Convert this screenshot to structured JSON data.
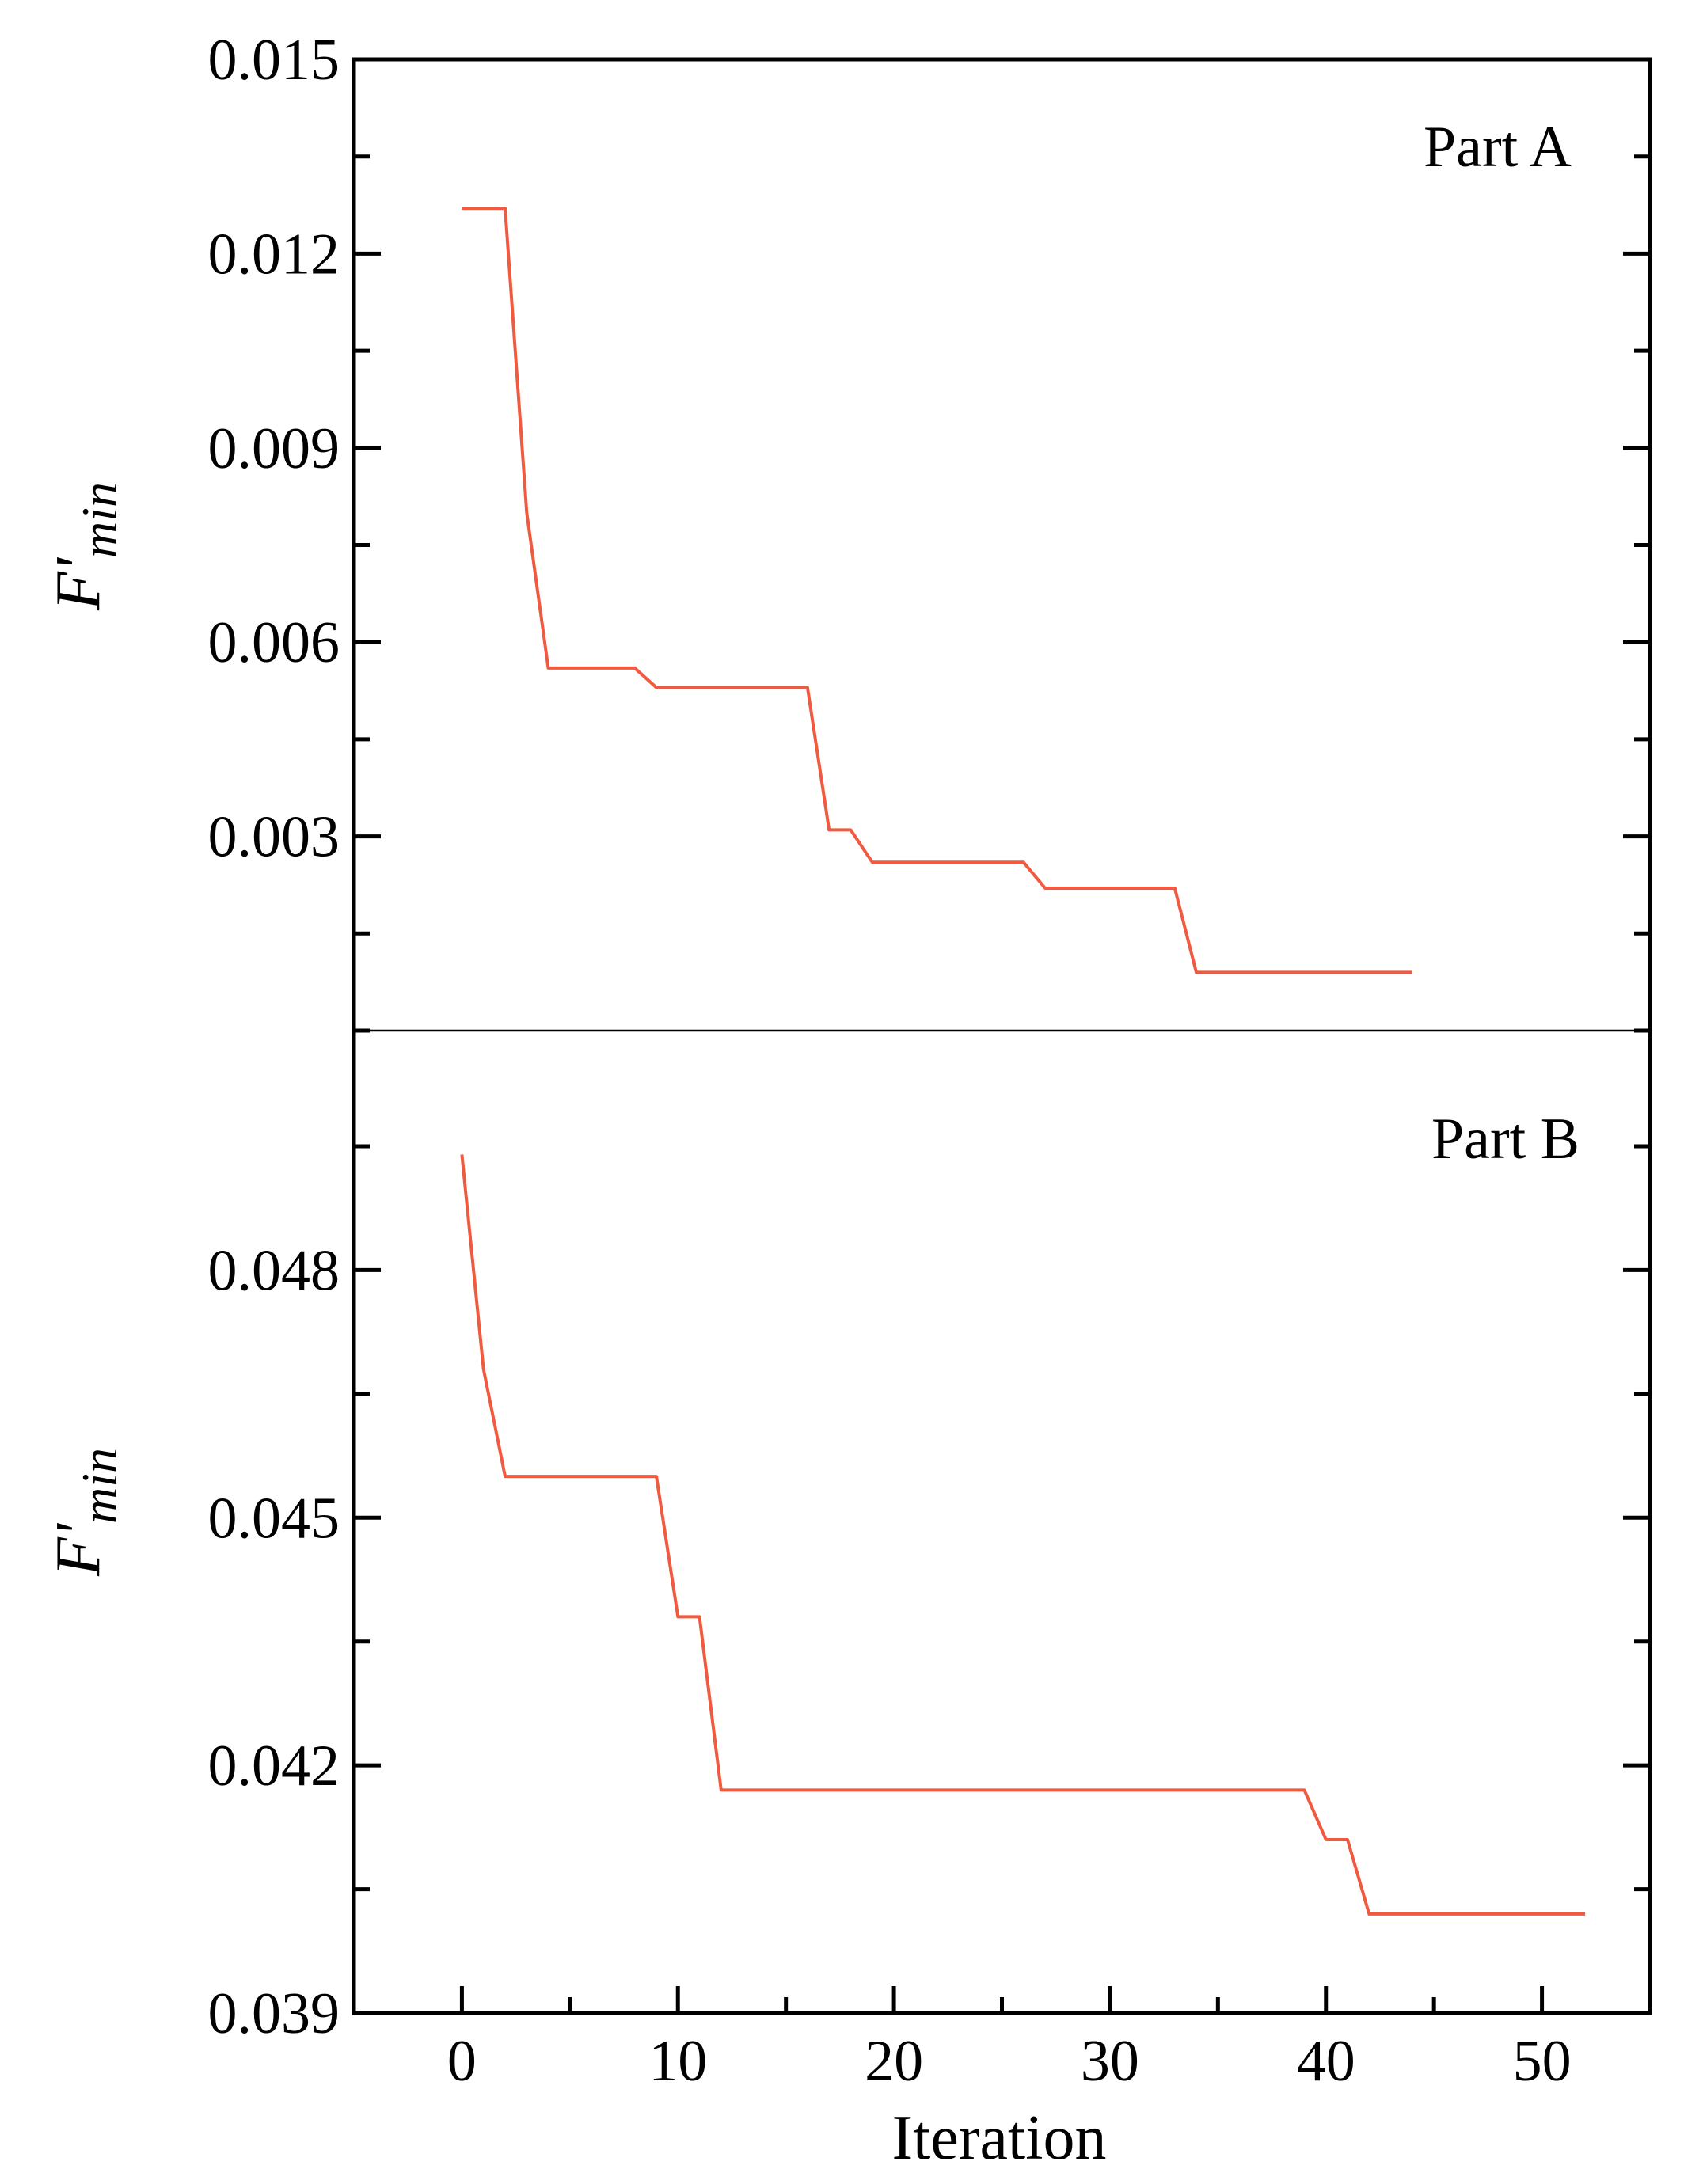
{
  "chart_data": [
    {
      "type": "line",
      "panel_label": "Part A",
      "ylabel": "F'min",
      "ylabel_main": "F'",
      "ylabel_sub": "min",
      "xlim": [
        -5,
        55
      ],
      "ylim": [
        0,
        0.015
      ],
      "yticks": [
        0.003,
        0.006,
        0.009,
        0.012,
        0.015
      ],
      "ytick_labels": [
        "0.003",
        "0.006",
        "0.009",
        "0.012",
        "0.015"
      ],
      "grid": false,
      "color": "#f05a40",
      "series": [
        {
          "points": [
            [
              0,
              0.0127
            ],
            [
              2,
              0.0127
            ],
            [
              3,
              0.008
            ],
            [
              4,
              0.0056
            ],
            [
              8,
              0.0056
            ],
            [
              9,
              0.0053
            ],
            [
              16,
              0.0053
            ],
            [
              17,
              0.0031
            ],
            [
              18,
              0.0031
            ],
            [
              19,
              0.0026
            ],
            [
              26,
              0.0026
            ],
            [
              27,
              0.0022
            ],
            [
              33,
              0.0022
            ],
            [
              34,
              0.0009
            ],
            [
              44,
              0.0009
            ]
          ]
        }
      ]
    },
    {
      "type": "line",
      "panel_label": "Part B",
      "ylabel": "F'min",
      "ylabel_main": "F'",
      "ylabel_sub": "min",
      "xlabel": "Iteration",
      "xlim": [
        -5,
        55
      ],
      "ylim": [
        0.039,
        0.0509
      ],
      "xticks": [
        0,
        10,
        20,
        30,
        40,
        50
      ],
      "xtick_labels": [
        "0",
        "10",
        "20",
        "30",
        "40",
        "50"
      ],
      "yticks": [
        0.039,
        0.042,
        0.045,
        0.048
      ],
      "ytick_labels": [
        "0.039",
        "0.042",
        "0.045",
        "0.048"
      ],
      "grid": false,
      "color": "#f05a40",
      "series": [
        {
          "points": [
            [
              0,
              0.0494
            ],
            [
              1,
              0.0468
            ],
            [
              2,
              0.0455
            ],
            [
              9,
              0.0455
            ],
            [
              10,
              0.0438
            ],
            [
              11,
              0.0438
            ],
            [
              12,
              0.0417
            ],
            [
              39,
              0.0417
            ],
            [
              40,
              0.0411
            ],
            [
              41,
              0.0411
            ],
            [
              42,
              0.0402
            ],
            [
              52,
              0.0402
            ]
          ]
        }
      ]
    }
  ]
}
